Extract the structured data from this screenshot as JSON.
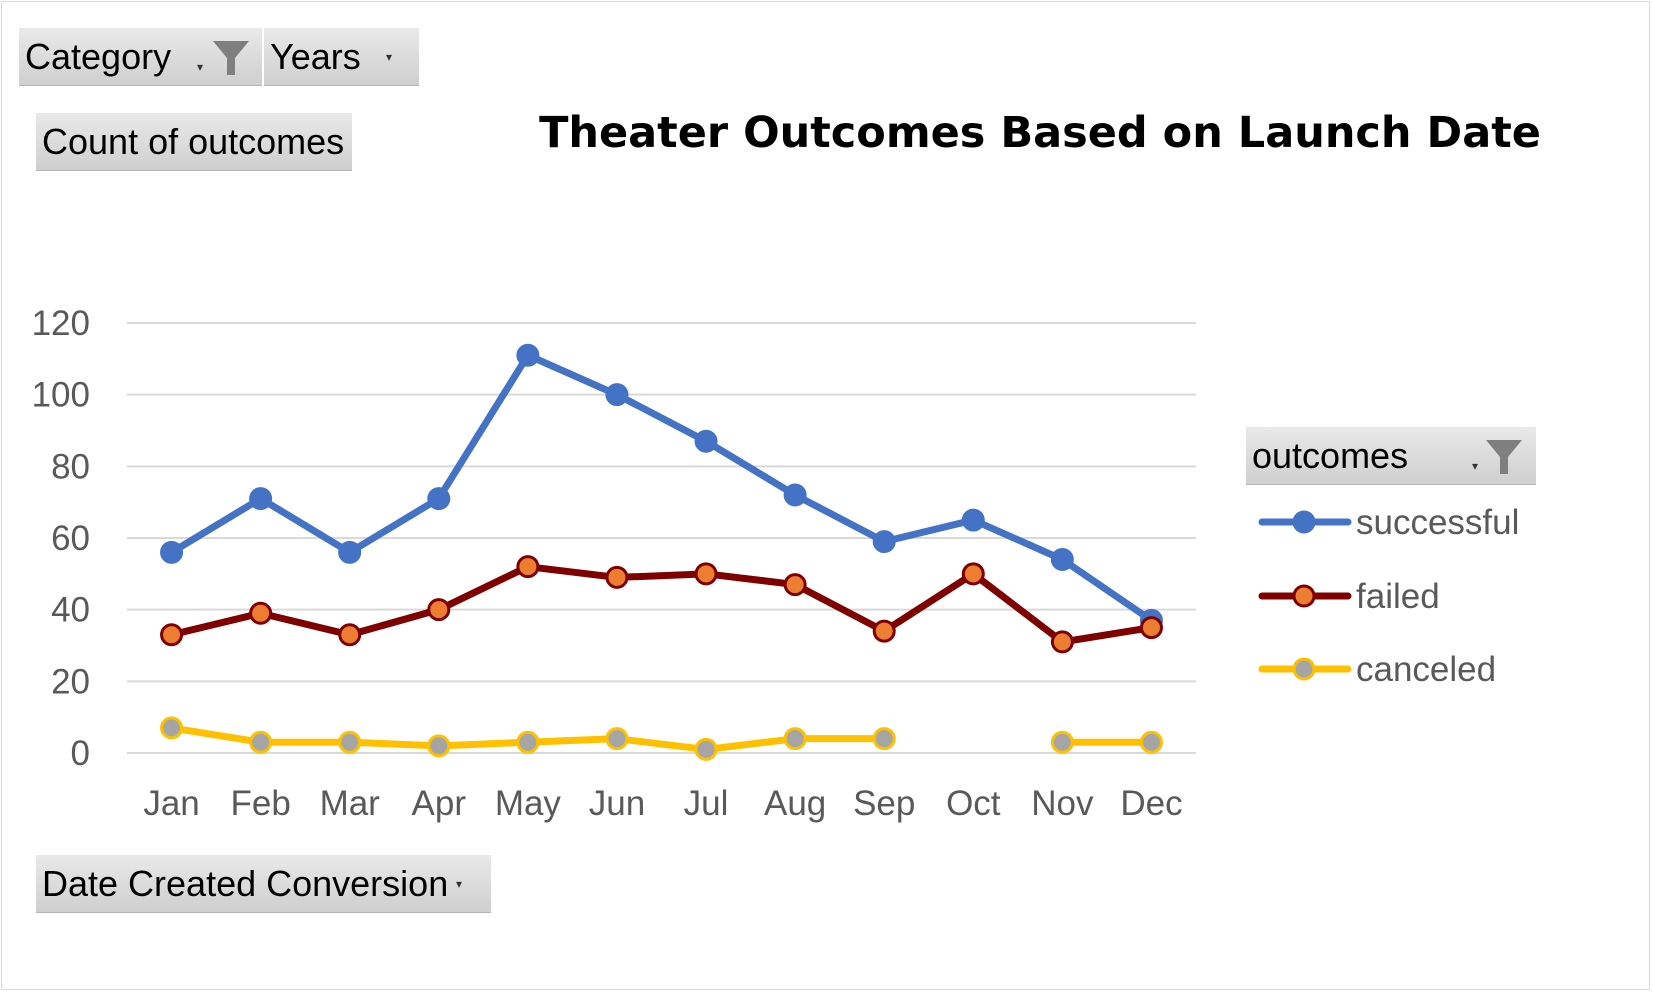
{
  "filters": {
    "category": "Category",
    "years": "Years",
    "values_field": "Count of outcomes",
    "legend_field": "outcomes",
    "axis_field": "Date Created Conversion"
  },
  "icons": {
    "filter": "funnel-icon",
    "dropdown": "dropdown-arrow-icon"
  },
  "chart_data": {
    "type": "line",
    "title": "Theater Outcomes Based on Launch Date",
    "categories": [
      "Jan",
      "Feb",
      "Mar",
      "Apr",
      "May",
      "Jun",
      "Jul",
      "Aug",
      "Sep",
      "Oct",
      "Nov",
      "Dec"
    ],
    "ylim": [
      0,
      120
    ],
    "yticks": [
      0,
      20,
      40,
      60,
      80,
      100,
      120
    ],
    "grid": true,
    "legend_position": "right",
    "series": [
      {
        "name": "successful",
        "color": "#4472c4",
        "marker_fill": "#4472c4",
        "marker_edge": "#4472c4",
        "values": [
          56,
          71,
          56,
          71,
          111,
          100,
          87,
          72,
          59,
          65,
          54,
          37
        ]
      },
      {
        "name": "failed",
        "color": "#7f0000",
        "marker_fill": "#ed7d31",
        "marker_edge": "#7f0000",
        "values": [
          33,
          39,
          33,
          40,
          52,
          49,
          50,
          47,
          34,
          50,
          31,
          35
        ]
      },
      {
        "name": "canceled",
        "color": "#ffc000",
        "marker_fill": "#a5a5a5",
        "marker_edge": "#ffc000",
        "values": [
          7,
          3,
          3,
          2,
          3,
          4,
          1,
          4,
          4,
          null,
          3,
          3
        ]
      }
    ]
  }
}
